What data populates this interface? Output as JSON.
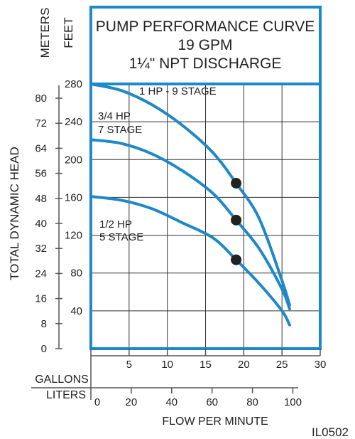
{
  "chart_data": {
    "type": "line",
    "title_lines": [
      "PUMP PERFORMANCE CURVE",
      "19 GPM",
      "1¼\" NPT DISCHARGE"
    ],
    "ylabel": "TOTAL DYNAMIC HEAD",
    "xlabel": "FLOW PER MINUTE",
    "feet_axis": {
      "label": "FEET",
      "range": [
        0,
        280
      ],
      "ticks": [
        40,
        80,
        120,
        160,
        200,
        240,
        280
      ]
    },
    "meters_axis": {
      "label": "METERS",
      "ticks": [
        0,
        8,
        16,
        24,
        32,
        40,
        48,
        56,
        64,
        72,
        80
      ]
    },
    "gallons_axis": {
      "label": "GALLONS",
      "range": [
        0,
        30
      ],
      "ticks": [
        5,
        10,
        15,
        20,
        25,
        30
      ]
    },
    "liters_axis": {
      "label": "LITERS",
      "ticks": [
        0,
        20,
        40,
        60,
        80,
        100
      ]
    },
    "series": [
      {
        "name": "1 HP - 9 STAGE",
        "label_lines": [
          "1 HP - 9 STAGE"
        ],
        "points": [
          [
            0,
            280
          ],
          [
            4,
            273
          ],
          [
            8,
            258
          ],
          [
            12,
            236
          ],
          [
            16,
            207
          ],
          [
            19,
            175
          ],
          [
            22,
            138
          ],
          [
            25,
            72
          ],
          [
            26,
            46
          ]
        ],
        "marker": [
          19,
          175
        ]
      },
      {
        "name": "3/4 HP 7 STAGE",
        "label_lines": [
          "3/4 HP",
          "7 STAGE"
        ],
        "points": [
          [
            0,
            221
          ],
          [
            4,
            217
          ],
          [
            8,
            206
          ],
          [
            12,
            188
          ],
          [
            16,
            164
          ],
          [
            19,
            136
          ],
          [
            22,
            106
          ],
          [
            25,
            63
          ],
          [
            26,
            42
          ]
        ],
        "marker": [
          19,
          136
        ]
      },
      {
        "name": "1/2 HP 5 STAGE",
        "label_lines": [
          "1/2 HP",
          "5 STAGE"
        ],
        "points": [
          [
            0,
            161
          ],
          [
            4,
            157
          ],
          [
            8,
            148
          ],
          [
            12,
            133
          ],
          [
            16,
            117
          ],
          [
            19,
            94
          ],
          [
            22,
            69
          ],
          [
            25,
            40
          ],
          [
            26,
            25
          ]
        ],
        "marker": [
          19,
          94
        ]
      }
    ],
    "grid": true,
    "curve_color": "#1e88c8",
    "frame_color": "#1e88c8",
    "marker_color": "#222222"
  },
  "code": "IL0502"
}
